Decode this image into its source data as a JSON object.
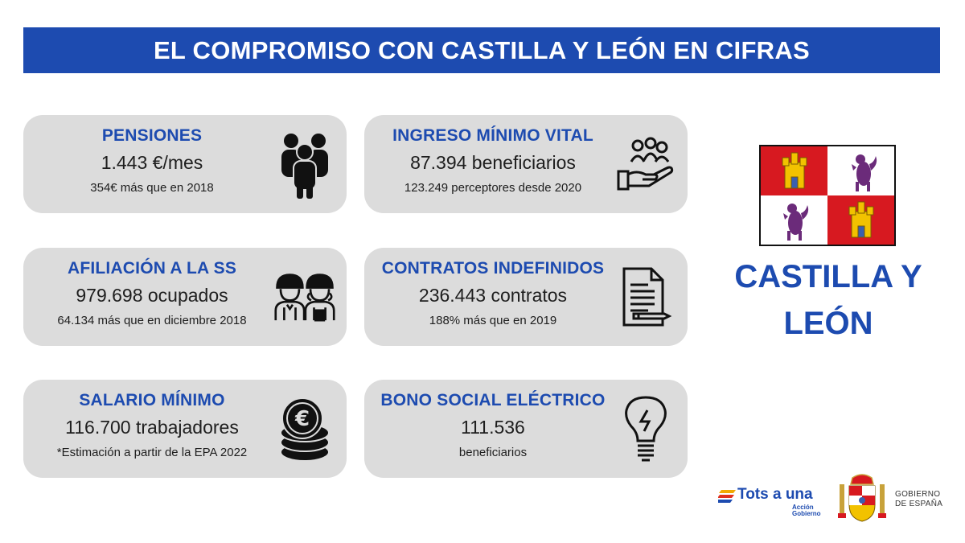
{
  "header": {
    "title": "EL COMPROMISO CON CASTILLA Y LEÓN EN CIFRAS"
  },
  "cards": [
    {
      "title": "PENSIONES",
      "value": "1.443 €/mes",
      "note": "354€ más que en 2018",
      "icon": "people-group-icon"
    },
    {
      "title": "INGRESO MÍNIMO VITAL",
      "value": "87.394 beneficiarios",
      "note": "123.249 perceptores desde 2020",
      "icon": "hand-people-icon"
    },
    {
      "title": "AFILIACIÓN A LA SS",
      "value": "979.698 ocupados",
      "note": "64.134 más que en diciembre 2018",
      "icon": "workers-icon"
    },
    {
      "title": "CONTRATOS INDEFINIDOS",
      "value": "236.443 contratos",
      "note": "188% más que en 2019",
      "icon": "contract-document-icon"
    },
    {
      "title": "SALARIO MÍNIMO",
      "value": "116.700 trabajadores",
      "note": "*Estimación a partir de la EPA 2022",
      "icon": "euro-coins-icon"
    },
    {
      "title": "BONO SOCIAL ELÉCTRICO",
      "value": "111.536",
      "note": "beneficiarios",
      "icon": "lightbulb-icon"
    }
  ],
  "region": {
    "line1": "CASTILLA Y",
    "line2": "LEÓN"
  },
  "footer": {
    "brand": "Tots a una",
    "brand_sub_1": "Acción",
    "brand_sub_2": "Gobierno",
    "gov_line1": "GOBIERNO",
    "gov_line2": "DE ESPAÑA"
  },
  "colors": {
    "accent": "#1d4bb0",
    "card": "#dcdcdc",
    "flag_red": "#d71920",
    "flag_gold": "#f2c200",
    "flag_purple": "#6b2b7a"
  }
}
